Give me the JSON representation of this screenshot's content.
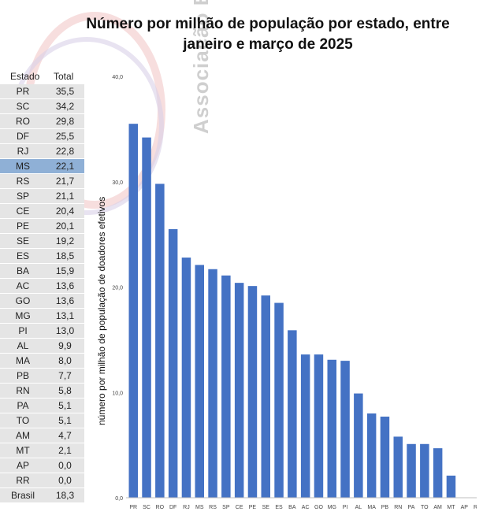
{
  "chart_data": {
    "type": "bar",
    "title": "Número por milhão de população por estado, entre janeiro e março de 2025",
    "ylabel": "número por milhão de população de doadores efetivos",
    "xlabel": "",
    "categories": [
      "PR",
      "SC",
      "RO",
      "DF",
      "RJ",
      "MS",
      "RS",
      "SP",
      "CE",
      "PE",
      "SE",
      "ES",
      "BA",
      "AC",
      "GO",
      "MG",
      "PI",
      "AL",
      "MA",
      "PB",
      "RN",
      "PA",
      "TO",
      "AM",
      "MT",
      "AP",
      "RR"
    ],
    "values": [
      35.5,
      34.2,
      29.8,
      25.5,
      22.8,
      22.1,
      21.7,
      21.1,
      20.4,
      20.1,
      19.2,
      18.5,
      15.9,
      13.6,
      13.6,
      13.1,
      13.0,
      9.9,
      8.0,
      7.7,
      5.8,
      5.1,
      5.1,
      4.7,
      2.1,
      0.0,
      0.0
    ],
    "ylim": [
      0,
      40
    ],
    "yticks": [
      "0,0",
      "10,0",
      "20,0",
      "30,0",
      "40,0"
    ],
    "grid": false,
    "bar_color": "#4472c4"
  },
  "table": {
    "header_state": "Estado",
    "header_total": "Total",
    "rows": [
      {
        "state": "PR",
        "total": "35,5"
      },
      {
        "state": "SC",
        "total": "34,2"
      },
      {
        "state": "RO",
        "total": "29,8"
      },
      {
        "state": "DF",
        "total": "25,5"
      },
      {
        "state": "RJ",
        "total": "22,8"
      },
      {
        "state": "MS",
        "total": "22,1"
      },
      {
        "state": "RS",
        "total": "21,7"
      },
      {
        "state": "SP",
        "total": "21,1"
      },
      {
        "state": "CE",
        "total": "20,4"
      },
      {
        "state": "PE",
        "total": "20,1"
      },
      {
        "state": "SE",
        "total": "19,2"
      },
      {
        "state": "ES",
        "total": "18,5"
      },
      {
        "state": "BA",
        "total": "15,9"
      },
      {
        "state": "AC",
        "total": "13,6"
      },
      {
        "state": "GO",
        "total": "13,6"
      },
      {
        "state": "MG",
        "total": "13,1"
      },
      {
        "state": "PI",
        "total": "13,0"
      },
      {
        "state": "AL",
        "total": "9,9"
      },
      {
        "state": "MA",
        "total": "8,0"
      },
      {
        "state": "PB",
        "total": "7,7"
      },
      {
        "state": "RN",
        "total": "5,8"
      },
      {
        "state": "PA",
        "total": "5,1"
      },
      {
        "state": "TO",
        "total": "5,1"
      },
      {
        "state": "AM",
        "total": "4,7"
      },
      {
        "state": "MT",
        "total": "2,1"
      },
      {
        "state": "AP",
        "total": "0,0"
      },
      {
        "state": "RR",
        "total": "0,0"
      },
      {
        "state": "Brasil",
        "total": "18,3"
      }
    ],
    "highlight_state": "MS",
    "highlight_color": "#8fb0d6"
  },
  "watermark": {
    "text": "Associação Brasileira"
  }
}
